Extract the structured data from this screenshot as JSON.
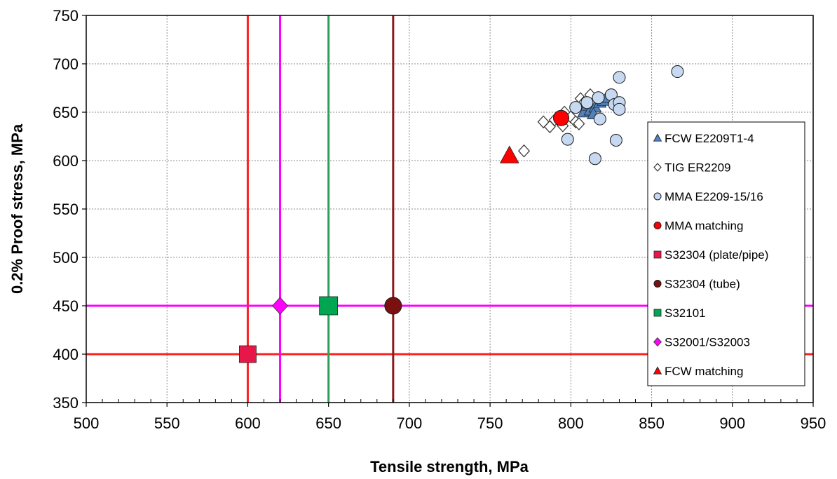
{
  "chart_data": {
    "type": "scatter",
    "xlabel": "Tensile strength, MPa",
    "ylabel": "0.2% Proof stress, MPa",
    "xlim": [
      500,
      950
    ],
    "ylim": [
      350,
      750
    ],
    "xticks": [
      500,
      550,
      600,
      650,
      700,
      750,
      800,
      850,
      900,
      950
    ],
    "yticks": [
      350,
      400,
      450,
      500,
      550,
      600,
      650,
      700,
      750
    ],
    "grid": true,
    "legend_position": "right",
    "series": [
      {
        "name": "FCW E2209T1-4",
        "marker": "triangle",
        "color": "#4f81bd",
        "points": [
          [
            808,
            650
          ],
          [
            810,
            657
          ],
          [
            812,
            652
          ],
          [
            815,
            655
          ],
          [
            818,
            660
          ],
          [
            820,
            662
          ],
          [
            822,
            665
          ],
          [
            814,
            648
          ]
        ]
      },
      {
        "name": "TIG ER2209",
        "marker": "diamond-open",
        "color": "#ffffff",
        "points": [
          [
            771,
            610
          ],
          [
            783,
            640
          ],
          [
            787,
            635
          ],
          [
            790,
            642
          ],
          [
            796,
            650
          ],
          [
            800,
            645
          ],
          [
            803,
            640
          ],
          [
            805,
            638
          ],
          [
            806,
            664
          ],
          [
            808,
            660
          ],
          [
            812,
            668
          ],
          [
            795,
            636
          ]
        ]
      },
      {
        "name": "MMA E2209-15/16",
        "marker": "circle",
        "color": "#c6d9f1",
        "points": [
          [
            798,
            622
          ],
          [
            803,
            655
          ],
          [
            810,
            660
          ],
          [
            815,
            602
          ],
          [
            817,
            665
          ],
          [
            818,
            643
          ],
          [
            825,
            668
          ],
          [
            827,
            658
          ],
          [
            828,
            621
          ],
          [
            830,
            686
          ],
          [
            830,
            660
          ],
          [
            830,
            653
          ],
          [
            866,
            692
          ]
        ]
      },
      {
        "name": "MMA matching",
        "marker": "circle",
        "color": "#ff0000",
        "points": [
          [
            794,
            644
          ]
        ]
      },
      {
        "name": "S32304 (plate/pipe)",
        "marker": "square",
        "color": "#e8174a",
        "points": [
          [
            600,
            400
          ]
        ],
        "lines": {
          "x": 600,
          "y": 400
        },
        "line_color": "#ff2020"
      },
      {
        "name": "S32304 (tube)",
        "marker": "circle",
        "color": "#7b1010",
        "points": [
          [
            690,
            450
          ]
        ],
        "lines": {
          "x": 690
        },
        "line_color": "#8b1a1a"
      },
      {
        "name": "S32101",
        "marker": "square",
        "color": "#00a651",
        "points": [
          [
            650,
            450
          ]
        ],
        "lines": {
          "x": 650
        },
        "line_color": "#2e9e5b"
      },
      {
        "name": "S32001/S32003",
        "marker": "diamond",
        "color": "#ff00ff",
        "points": [
          [
            620,
            450
          ]
        ],
        "lines": {
          "x": 620,
          "y": 450
        },
        "line_color": "#ff00ff"
      },
      {
        "name": "FCW matching",
        "marker": "triangle",
        "color": "#ff0000",
        "points": [
          [
            762,
            605
          ]
        ]
      }
    ]
  }
}
